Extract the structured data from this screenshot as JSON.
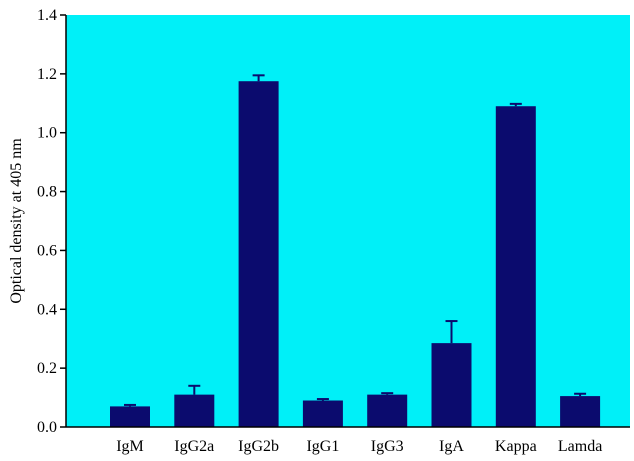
{
  "chart_data": {
    "type": "bar",
    "title": "",
    "xlabel": "",
    "ylabel": "Optical density at 405 nm",
    "ylim": [
      0,
      1.4
    ],
    "yticks": [
      "0.0",
      "0.2",
      "0.4",
      "0.6",
      "0.8",
      "1.0",
      "1.2",
      "1.4"
    ],
    "grid": false,
    "legend": "none",
    "categories": [
      "IgM",
      "IgG2a",
      "IgG2b",
      "IgG1",
      "IgG3",
      "IgA",
      "Kappa",
      "Lamda"
    ],
    "values": [
      0.07,
      0.11,
      1.175,
      0.09,
      0.11,
      0.285,
      1.09,
      0.105
    ],
    "errors": [
      0.005,
      0.03,
      0.02,
      0.005,
      0.005,
      0.075,
      0.008,
      0.008
    ],
    "colors": {
      "plot_background": "#00f0f8",
      "bar": "#0b0b6e",
      "axis": "#000000"
    }
  }
}
